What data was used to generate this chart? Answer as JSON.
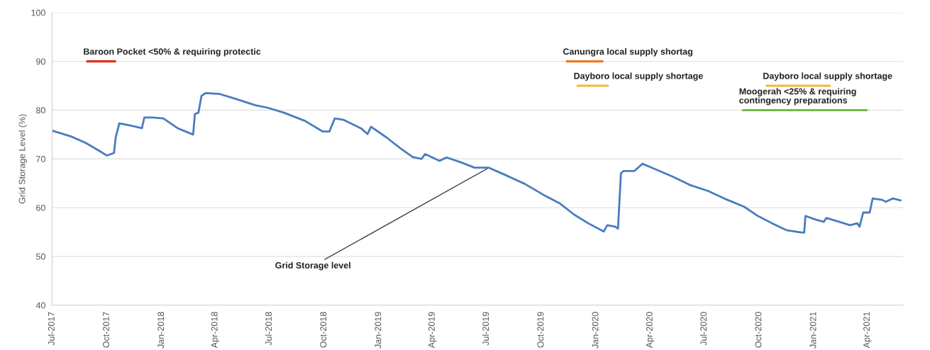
{
  "chart_data": {
    "type": "line",
    "ylabel": "Grid Storage Level (%)",
    "ylim": [
      40,
      100
    ],
    "yticks": [
      40,
      50,
      60,
      70,
      80,
      90,
      100
    ],
    "xlim": [
      "2017-07-01",
      "2021-05-31"
    ],
    "xticks": [
      {
        "value": "2017-07-01",
        "label": "Jul-2017"
      },
      {
        "value": "2017-10-01",
        "label": "Oct-2017"
      },
      {
        "value": "2018-01-01",
        "label": "Jan-2018"
      },
      {
        "value": "2018-04-01",
        "label": "Apr-2018"
      },
      {
        "value": "2018-07-01",
        "label": "Jul-2018"
      },
      {
        "value": "2018-10-01",
        "label": "Oct-2018"
      },
      {
        "value": "2019-01-01",
        "label": "Jan-2019"
      },
      {
        "value": "2019-04-01",
        "label": "Apr-2019"
      },
      {
        "value": "2019-07-01",
        "label": "Jul-2019"
      },
      {
        "value": "2019-10-01",
        "label": "Oct-2019"
      },
      {
        "value": "2020-01-01",
        "label": "Jan-2020"
      },
      {
        "value": "2020-04-01",
        "label": "Apr-2020"
      },
      {
        "value": "2020-07-01",
        "label": "Jul-2020"
      },
      {
        "value": "2020-10-01",
        "label": "Oct-2020"
      },
      {
        "value": "2021-01-01",
        "label": "Jan-2021"
      },
      {
        "value": "2021-04-01",
        "label": "Apr-2021"
      }
    ],
    "grid": "y",
    "marker": "none",
    "line_style": "solid",
    "series": [
      {
        "color": "#4a7cc0",
        "x": [
          "2017-07-01",
          "2017-08-02",
          "2017-08-26",
          "2017-09-19",
          "2017-10-01",
          "2017-10-13",
          "2017-10-16",
          "2017-10-22",
          "2017-11-11",
          "2017-11-29",
          "2017-12-03",
          "2017-12-17",
          "2018-01-04",
          "2018-01-28",
          "2018-02-23",
          "2018-02-26",
          "2018-03-04",
          "2018-03-09",
          "2018-03-16",
          "2018-04-09",
          "2018-05-03",
          "2018-06-08",
          "2018-06-28",
          "2018-07-25",
          "2018-08-30",
          "2018-09-29",
          "2018-10-10",
          "2018-10-19",
          "2018-11-03",
          "2018-12-03",
          "2018-12-13",
          "2018-12-19",
          "2019-01-14",
          "2019-02-06",
          "2019-02-27",
          "2019-03-14",
          "2019-03-20",
          "2019-04-13",
          "2019-04-25",
          "2019-05-19",
          "2019-06-11",
          "2019-07-05",
          "2019-07-29",
          "2019-09-03",
          "2019-10-08",
          "2019-11-01",
          "2019-11-25",
          "2019-12-19",
          "2020-01-14",
          "2020-01-20",
          "2020-02-02",
          "2020-02-07",
          "2020-02-12",
          "2020-02-16",
          "2020-03-05",
          "2020-03-11",
          "2020-03-19",
          "2020-04-04",
          "2020-05-10",
          "2020-06-08",
          "2020-07-08",
          "2020-08-07",
          "2020-09-06",
          "2020-09-29",
          "2020-10-23",
          "2020-11-16",
          "2020-12-11",
          "2020-12-16",
          "2020-12-18",
          "2021-01-03",
          "2021-01-18",
          "2021-01-22",
          "2021-02-13",
          "2021-03-03",
          "2021-03-15",
          "2021-03-19",
          "2021-03-25",
          "2021-04-05",
          "2021-04-10",
          "2021-04-26",
          "2021-05-02",
          "2021-05-14",
          "2021-05-27"
        ],
        "values": [
          75.8,
          74.6,
          73.3,
          71.6,
          70.7,
          71.2,
          74.5,
          77.3,
          76.8,
          76.3,
          78.5,
          78.5,
          78.3,
          76.3,
          75.0,
          79.2,
          79.5,
          82.9,
          83.5,
          83.3,
          82.4,
          81.0,
          80.5,
          79.5,
          77.8,
          75.6,
          75.6,
          78.3,
          78.0,
          76.2,
          75.1,
          76.6,
          74.4,
          72.2,
          70.4,
          70.0,
          71.0,
          69.6,
          70.3,
          69.3,
          68.2,
          68.2,
          66.9,
          64.9,
          62.4,
          60.9,
          58.6,
          56.8,
          55.1,
          56.4,
          56.1,
          55.7,
          67.1,
          67.5,
          67.5,
          68.1,
          69.0,
          68.2,
          66.3,
          64.6,
          63.4,
          61.7,
          60.2,
          58.3,
          56.8,
          55.4,
          54.9,
          54.9,
          58.3,
          57.6,
          57.1,
          57.9,
          57.1,
          56.4,
          56.8,
          56.1,
          59.0,
          59.0,
          61.9,
          61.6,
          61.2,
          61.9,
          61.5
        ]
      },
      {
        "name": "Baroon Pocket <50% & requiring protectic",
        "color": "#e0301e",
        "x": [
          "2017-08-29",
          "2017-10-15"
        ],
        "values": [
          90,
          90
        ]
      },
      {
        "name": "Canungra local supply shortag",
        "color": "#f07a22",
        "x": [
          "2019-11-13",
          "2020-01-12"
        ],
        "values": [
          90,
          90
        ]
      },
      {
        "name": "Dayboro local supply shortage",
        "color": "#f5b731",
        "x": [
          "2019-12-01",
          "2020-01-21"
        ],
        "values": [
          85,
          85
        ]
      },
      {
        "name": "Dayboro local supply shortage",
        "color": "#f5b731",
        "x": [
          "2020-10-14",
          "2021-01-28"
        ],
        "values": [
          85,
          85
        ]
      },
      {
        "name": "Moogerah <25% & requiring\ncontingency preparations",
        "color": "#72b84a",
        "x": [
          "2020-09-04",
          "2021-03-31"
        ],
        "values": [
          80,
          80
        ]
      }
    ],
    "annotations": [
      {
        "text": "Grid Storage level",
        "x": "2019-07-05",
        "y": 68.2
      }
    ]
  }
}
